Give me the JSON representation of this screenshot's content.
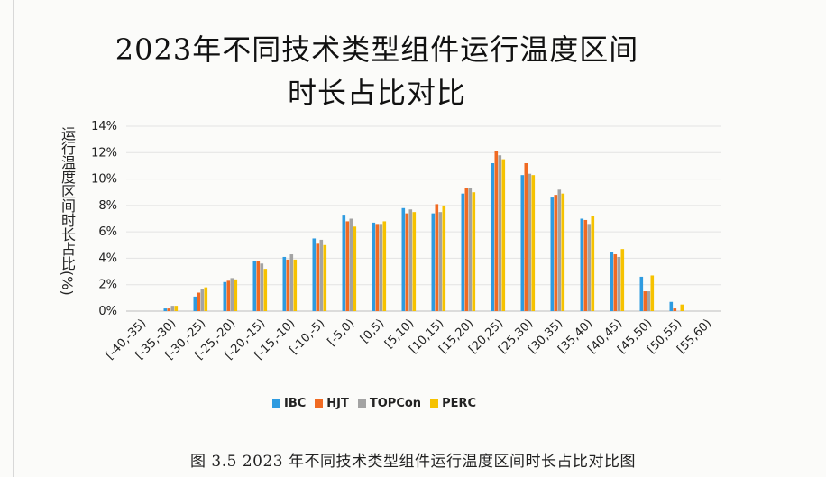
{
  "title_line1": "2023年不同技术类型组件运行温度区间",
  "title_line2": "时长占比对比",
  "ylabel": "运行温度区间时长占比(%)",
  "caption": "图 3.5   2023 年不同技术类型组件运行温度区间时长占比对比图",
  "colors": {
    "IBC": "#2e9be0",
    "HJT": "#f06a22",
    "TOPCon": "#a3a3a3",
    "PERC": "#f6c200"
  },
  "chart_data": {
    "type": "bar",
    "title": "2023年不同技术类型组件运行温度区间时长占比",
    "ylabel": "运行温度区间时长占比(%)",
    "xlabel": "",
    "ylim": [
      0,
      14
    ],
    "yticks": [
      "0%",
      "2%",
      "4%",
      "6%",
      "8%",
      "10%",
      "12%",
      "14%"
    ],
    "grid": true,
    "legend": "bottom",
    "categories": [
      "[-40,-35)",
      "[-35,-30)",
      "[-30,-25)",
      "[-25,-20)",
      "[-20,-15)",
      "[-15,-10)",
      "[-10,-5)",
      "[-5,0)",
      "[0,5)",
      "[5,10)",
      "[10,15)",
      "[15,20)",
      "[20,25)",
      "[25,30)",
      "[30,35)",
      "[35,40)",
      "[40,45)",
      "[45,50)",
      "[50,55)",
      "[55,60)"
    ],
    "series": [
      {
        "name": "IBC",
        "values": [
          0.0,
          0.2,
          1.1,
          2.2,
          3.8,
          4.1,
          5.5,
          7.3,
          6.7,
          7.8,
          7.4,
          8.9,
          11.2,
          10.3,
          8.6,
          7.0,
          4.5,
          2.6,
          0.7,
          0.0
        ]
      },
      {
        "name": "HJT",
        "values": [
          0.0,
          0.2,
          1.4,
          2.3,
          3.8,
          3.9,
          5.1,
          6.8,
          6.6,
          7.4,
          8.1,
          9.3,
          12.1,
          11.2,
          8.8,
          6.9,
          4.3,
          1.5,
          0.2,
          0.0
        ]
      },
      {
        "name": "TOPCon",
        "values": [
          0.0,
          0.4,
          1.7,
          2.5,
          3.6,
          4.3,
          5.4,
          7.0,
          6.6,
          7.7,
          7.5,
          9.3,
          11.8,
          10.4,
          9.2,
          6.6,
          4.1,
          1.5,
          0.0,
          0.0
        ]
      },
      {
        "name": "PERC",
        "values": [
          0.0,
          0.4,
          1.8,
          2.4,
          3.2,
          3.9,
          5.0,
          6.4,
          6.8,
          7.5,
          8.0,
          9.0,
          11.5,
          10.3,
          8.9,
          7.2,
          4.7,
          2.7,
          0.5,
          0.0
        ]
      }
    ]
  }
}
